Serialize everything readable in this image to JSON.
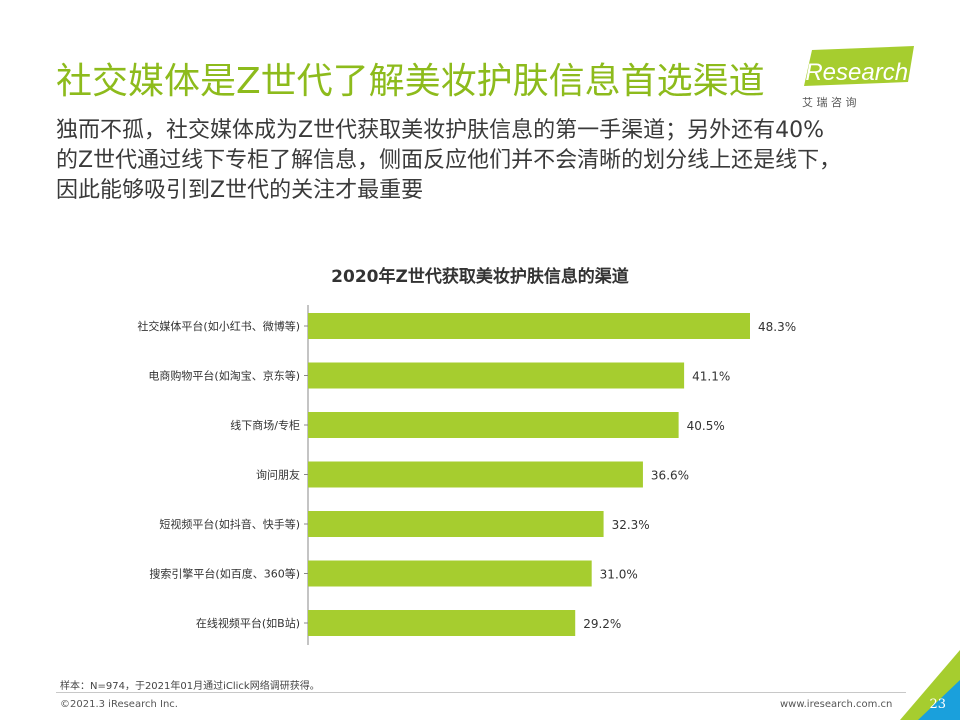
{
  "header": {
    "title": "社交媒体是Z世代了解美妆护肤信息首选渠道",
    "subtitle_lines": [
      "独而不孤，社交媒体成为Z世代获取美妆护肤信息的第一手渠道；另外还有40%",
      "的Z世代通过线下专柜了解信息，侧面反应他们并不会清晰的划分线上还是线下，",
      "因此能够吸引到Z世代的关注才最重要"
    ]
  },
  "logo": {
    "brand": "iResearch",
    "cn": "艾 瑞 咨 询"
  },
  "colors": {
    "accent": "#8dbb1c",
    "bar": "#a6cd2f",
    "axis": "#888888"
  },
  "chart_data": {
    "type": "bar",
    "orientation": "horizontal",
    "title": "2020年Z世代获取美妆护肤信息的渠道",
    "categories": [
      "社交媒体平台(如小红书、微博等)",
      "电商购物平台(如淘宝、京东等)",
      "线下商场/专柜",
      "询问朋友",
      "短视频平台(如抖音、快手等)",
      "搜索引擎平台(如百度、360等)",
      "在线视频平台(如B站)"
    ],
    "values": [
      48.3,
      41.1,
      40.5,
      36.6,
      32.3,
      31.0,
      29.2
    ],
    "labels": [
      "48.3%",
      "41.1%",
      "40.5%",
      "36.6%",
      "32.3%",
      "31.0%",
      "29.2%"
    ],
    "unit": "%",
    "xlim": [
      0,
      60
    ]
  },
  "footer": {
    "note": "样本：N=974，于2021年01月通过iClick网络调研获得。",
    "copyright": "©2021.3 iResearch Inc.",
    "website": "www.iresearch.com.cn",
    "page": "23"
  }
}
